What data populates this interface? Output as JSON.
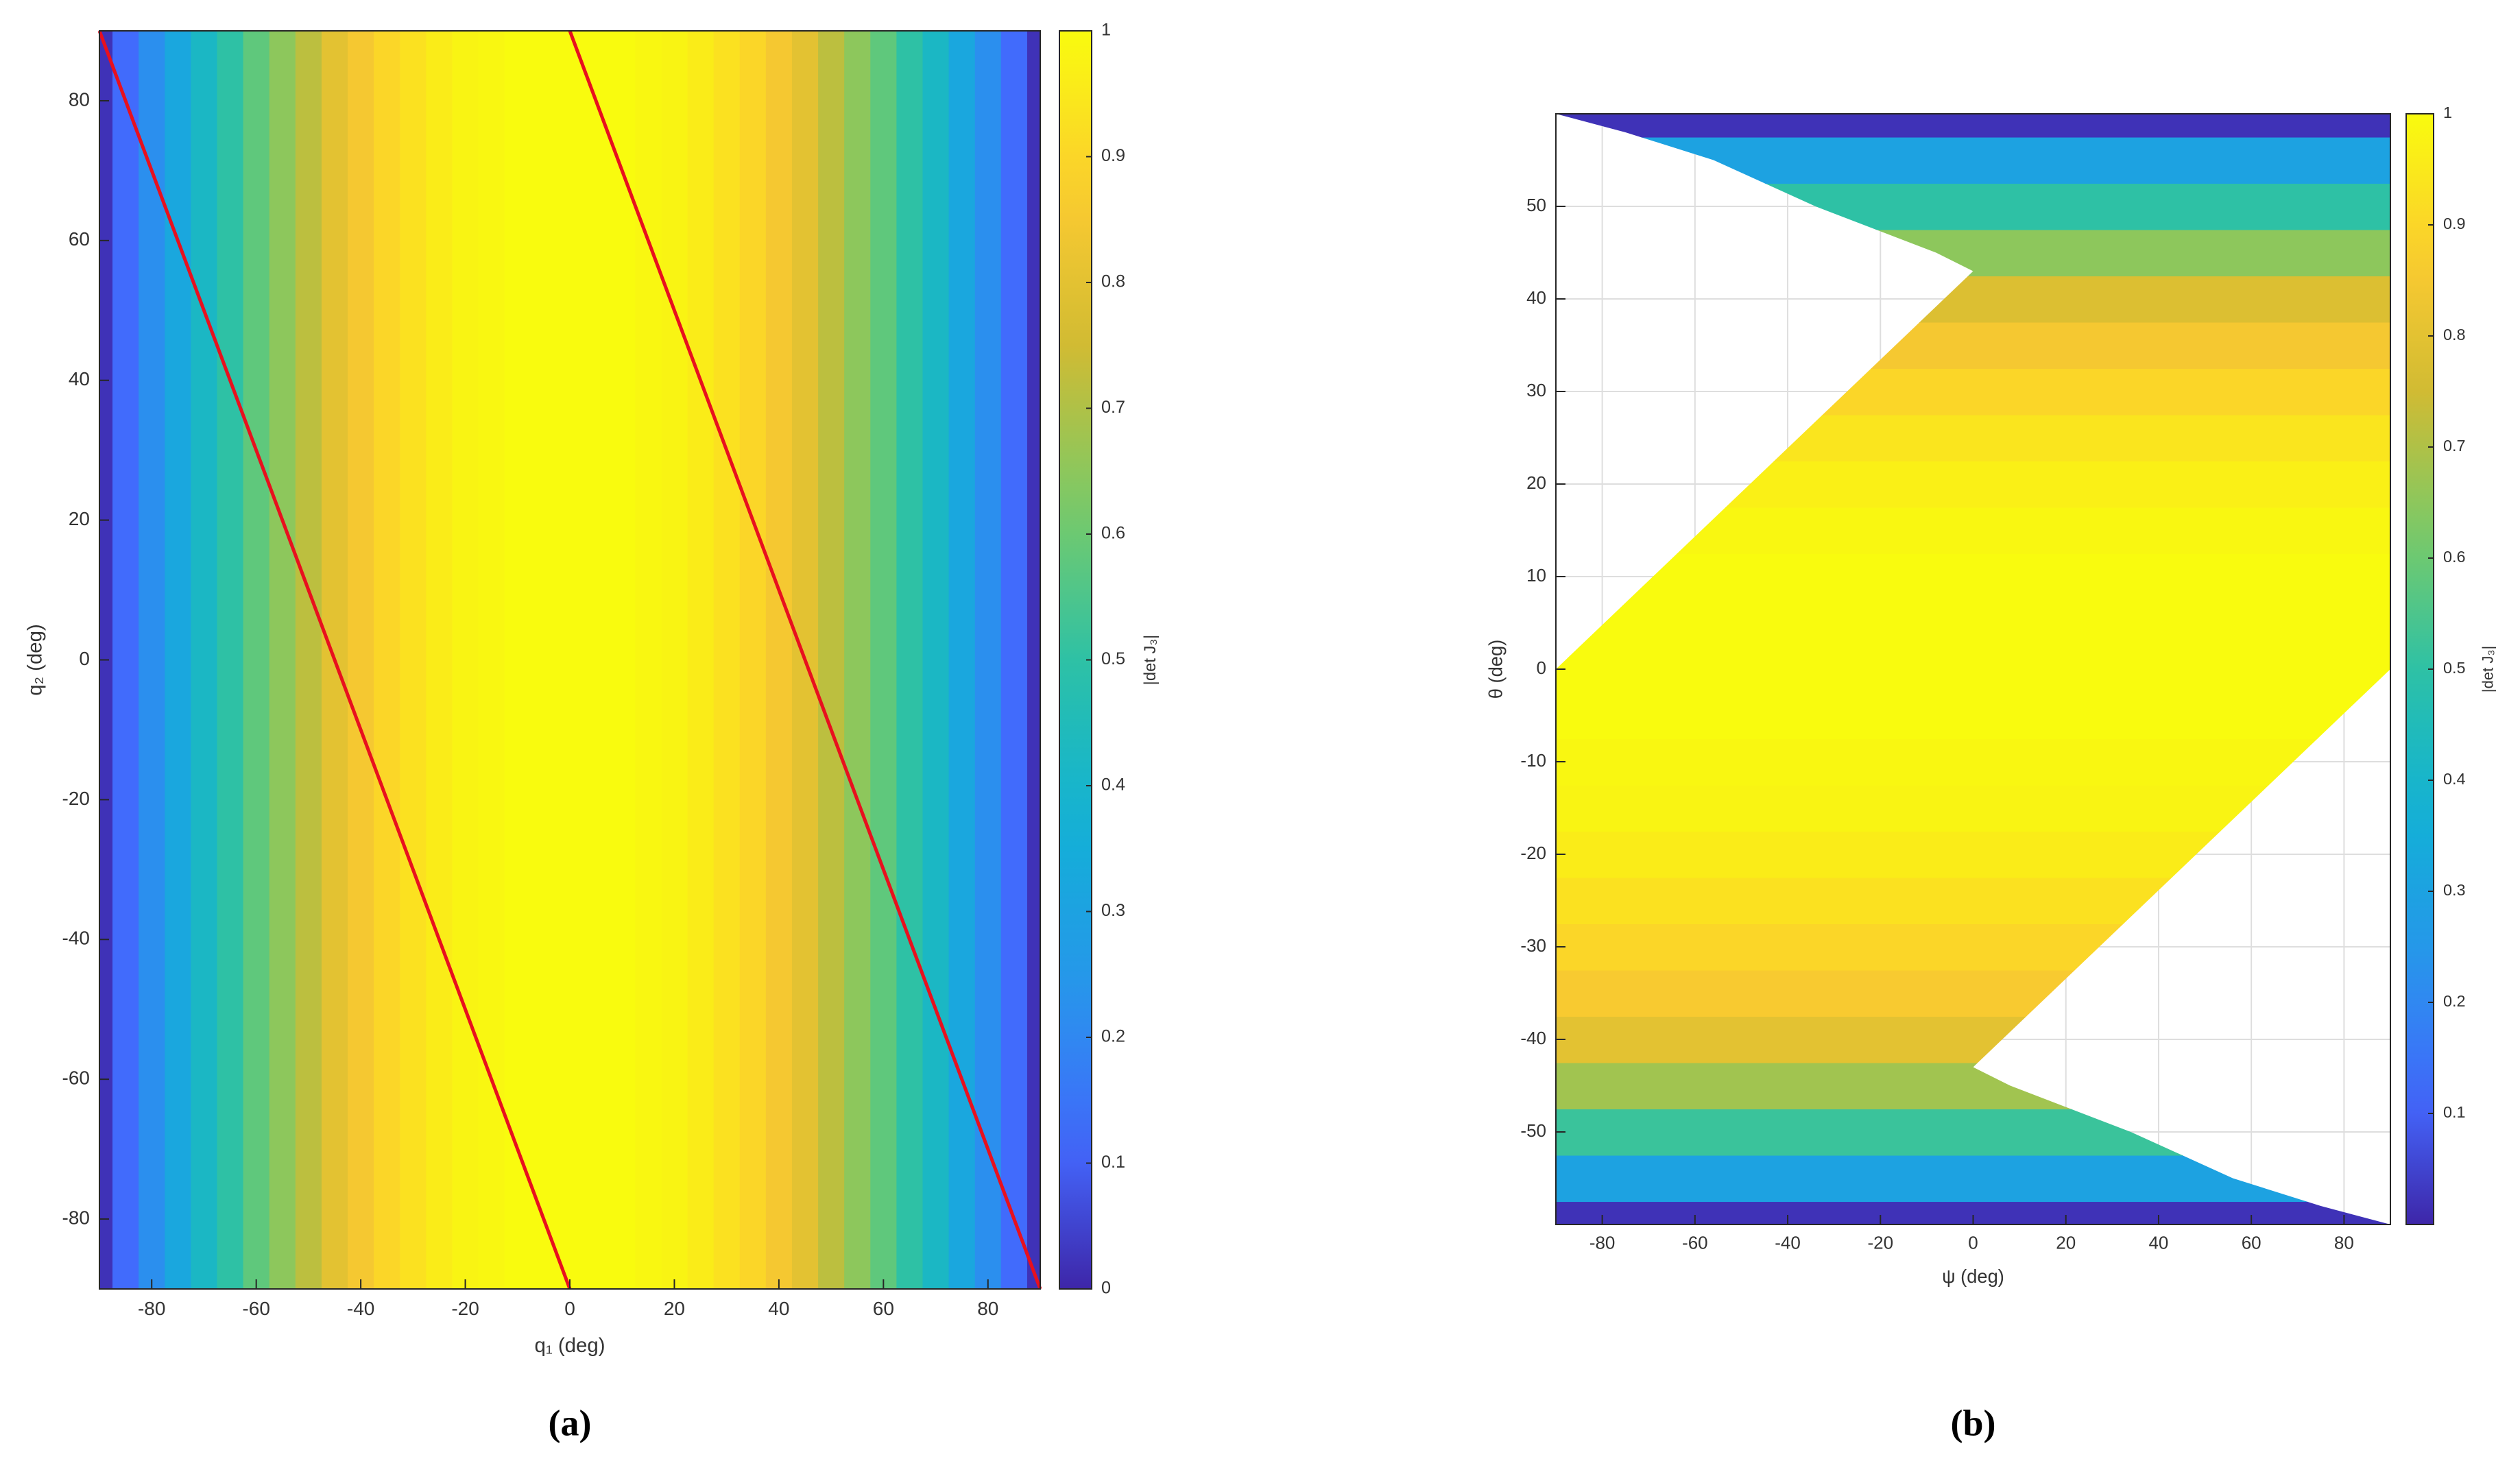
{
  "chart_data": [
    {
      "type": "heatmap",
      "caption": "(a)",
      "xlabel": "q₁ (deg)",
      "ylabel": "q₂ (deg)",
      "colorbar_label": "|det J₃|",
      "colormap": "parula",
      "x": [
        -90,
        -85,
        -80,
        -75,
        -70,
        -65,
        -60,
        -55,
        -50,
        -45,
        -40,
        -35,
        -30,
        -25,
        -20,
        -15,
        -10,
        -5,
        0,
        5,
        10,
        15,
        20,
        25,
        30,
        35,
        40,
        45,
        50,
        55,
        60,
        65,
        70,
        75,
        80,
        85,
        90
      ],
      "values": [
        0.02,
        0.12,
        0.22,
        0.32,
        0.42,
        0.5,
        0.58,
        0.65,
        0.72,
        0.8,
        0.85,
        0.9,
        0.93,
        0.96,
        0.98,
        0.99,
        1,
        1,
        1,
        1,
        1,
        0.99,
        0.98,
        0.96,
        0.93,
        0.9,
        0.85,
        0.8,
        0.72,
        0.65,
        0.58,
        0.5,
        0.42,
        0.32,
        0.22,
        0.12,
        0.02
      ],
      "xlim": [
        -90,
        90
      ],
      "ylim": [
        -90,
        90
      ],
      "xticks": [
        -80,
        -60,
        -40,
        -20,
        0,
        20,
        40,
        60,
        80
      ],
      "yticks": [
        -80,
        -60,
        -40,
        -20,
        0,
        20,
        40,
        60,
        80
      ],
      "clim": [
        0,
        1
      ],
      "cticks": [
        0,
        0.1,
        0.2,
        0.3,
        0.4,
        0.5,
        0.6,
        0.7,
        0.8,
        0.9,
        1
      ],
      "grid": false,
      "lines": [
        {
          "color": "#e8101e",
          "x": [
            -90,
            0
          ],
          "y": [
            90,
            -90
          ]
        },
        {
          "color": "#e8101e",
          "x": [
            0,
            90
          ],
          "y": [
            90,
            -90
          ]
        }
      ]
    },
    {
      "type": "heatmap",
      "caption": "(b)",
      "xlabel": "ψ (deg)",
      "ylabel": "θ (deg)",
      "colorbar_label": "|det J₃|",
      "colormap": "parula",
      "y": [
        -60,
        -55,
        -50,
        -45,
        -40,
        -35,
        -30,
        -25,
        -20,
        -15,
        -10,
        -5,
        0,
        5,
        10,
        15,
        20,
        25,
        30,
        35,
        40,
        45,
        50,
        55,
        60
      ],
      "values": [
        0.02,
        0.3,
        0.52,
        0.68,
        0.8,
        0.86,
        0.9,
        0.93,
        0.96,
        0.98,
        0.99,
        1,
        1,
        1,
        1,
        0.99,
        0.97,
        0.94,
        0.9,
        0.85,
        0.78,
        0.65,
        0.5,
        0.3,
        0.02
      ],
      "xlim": [
        -90,
        90
      ],
      "ylim": [
        -60,
        60
      ],
      "xticks": [
        -80,
        -60,
        -40,
        -20,
        0,
        20,
        40,
        60,
        80
      ],
      "yticks": [
        -50,
        -40,
        -30,
        -20,
        -10,
        0,
        10,
        20,
        30,
        40,
        50
      ],
      "clim": [
        0,
        1
      ],
      "cticks": [
        0.1,
        0.2,
        0.3,
        0.4,
        0.5,
        0.6,
        0.7,
        0.8,
        0.9,
        1
      ],
      "grid": true,
      "region": {
        "x": [
          -90,
          0,
          -8,
          -34,
          -56,
          -75,
          -90,
          90,
          90,
          0,
          8,
          34,
          56,
          75,
          90,
          -90
        ],
        "y": [
          0,
          43,
          45,
          50,
          55,
          58,
          60,
          60,
          0,
          -43,
          -45,
          -50,
          -55,
          -58,
          -60,
          -60
        ]
      }
    }
  ]
}
